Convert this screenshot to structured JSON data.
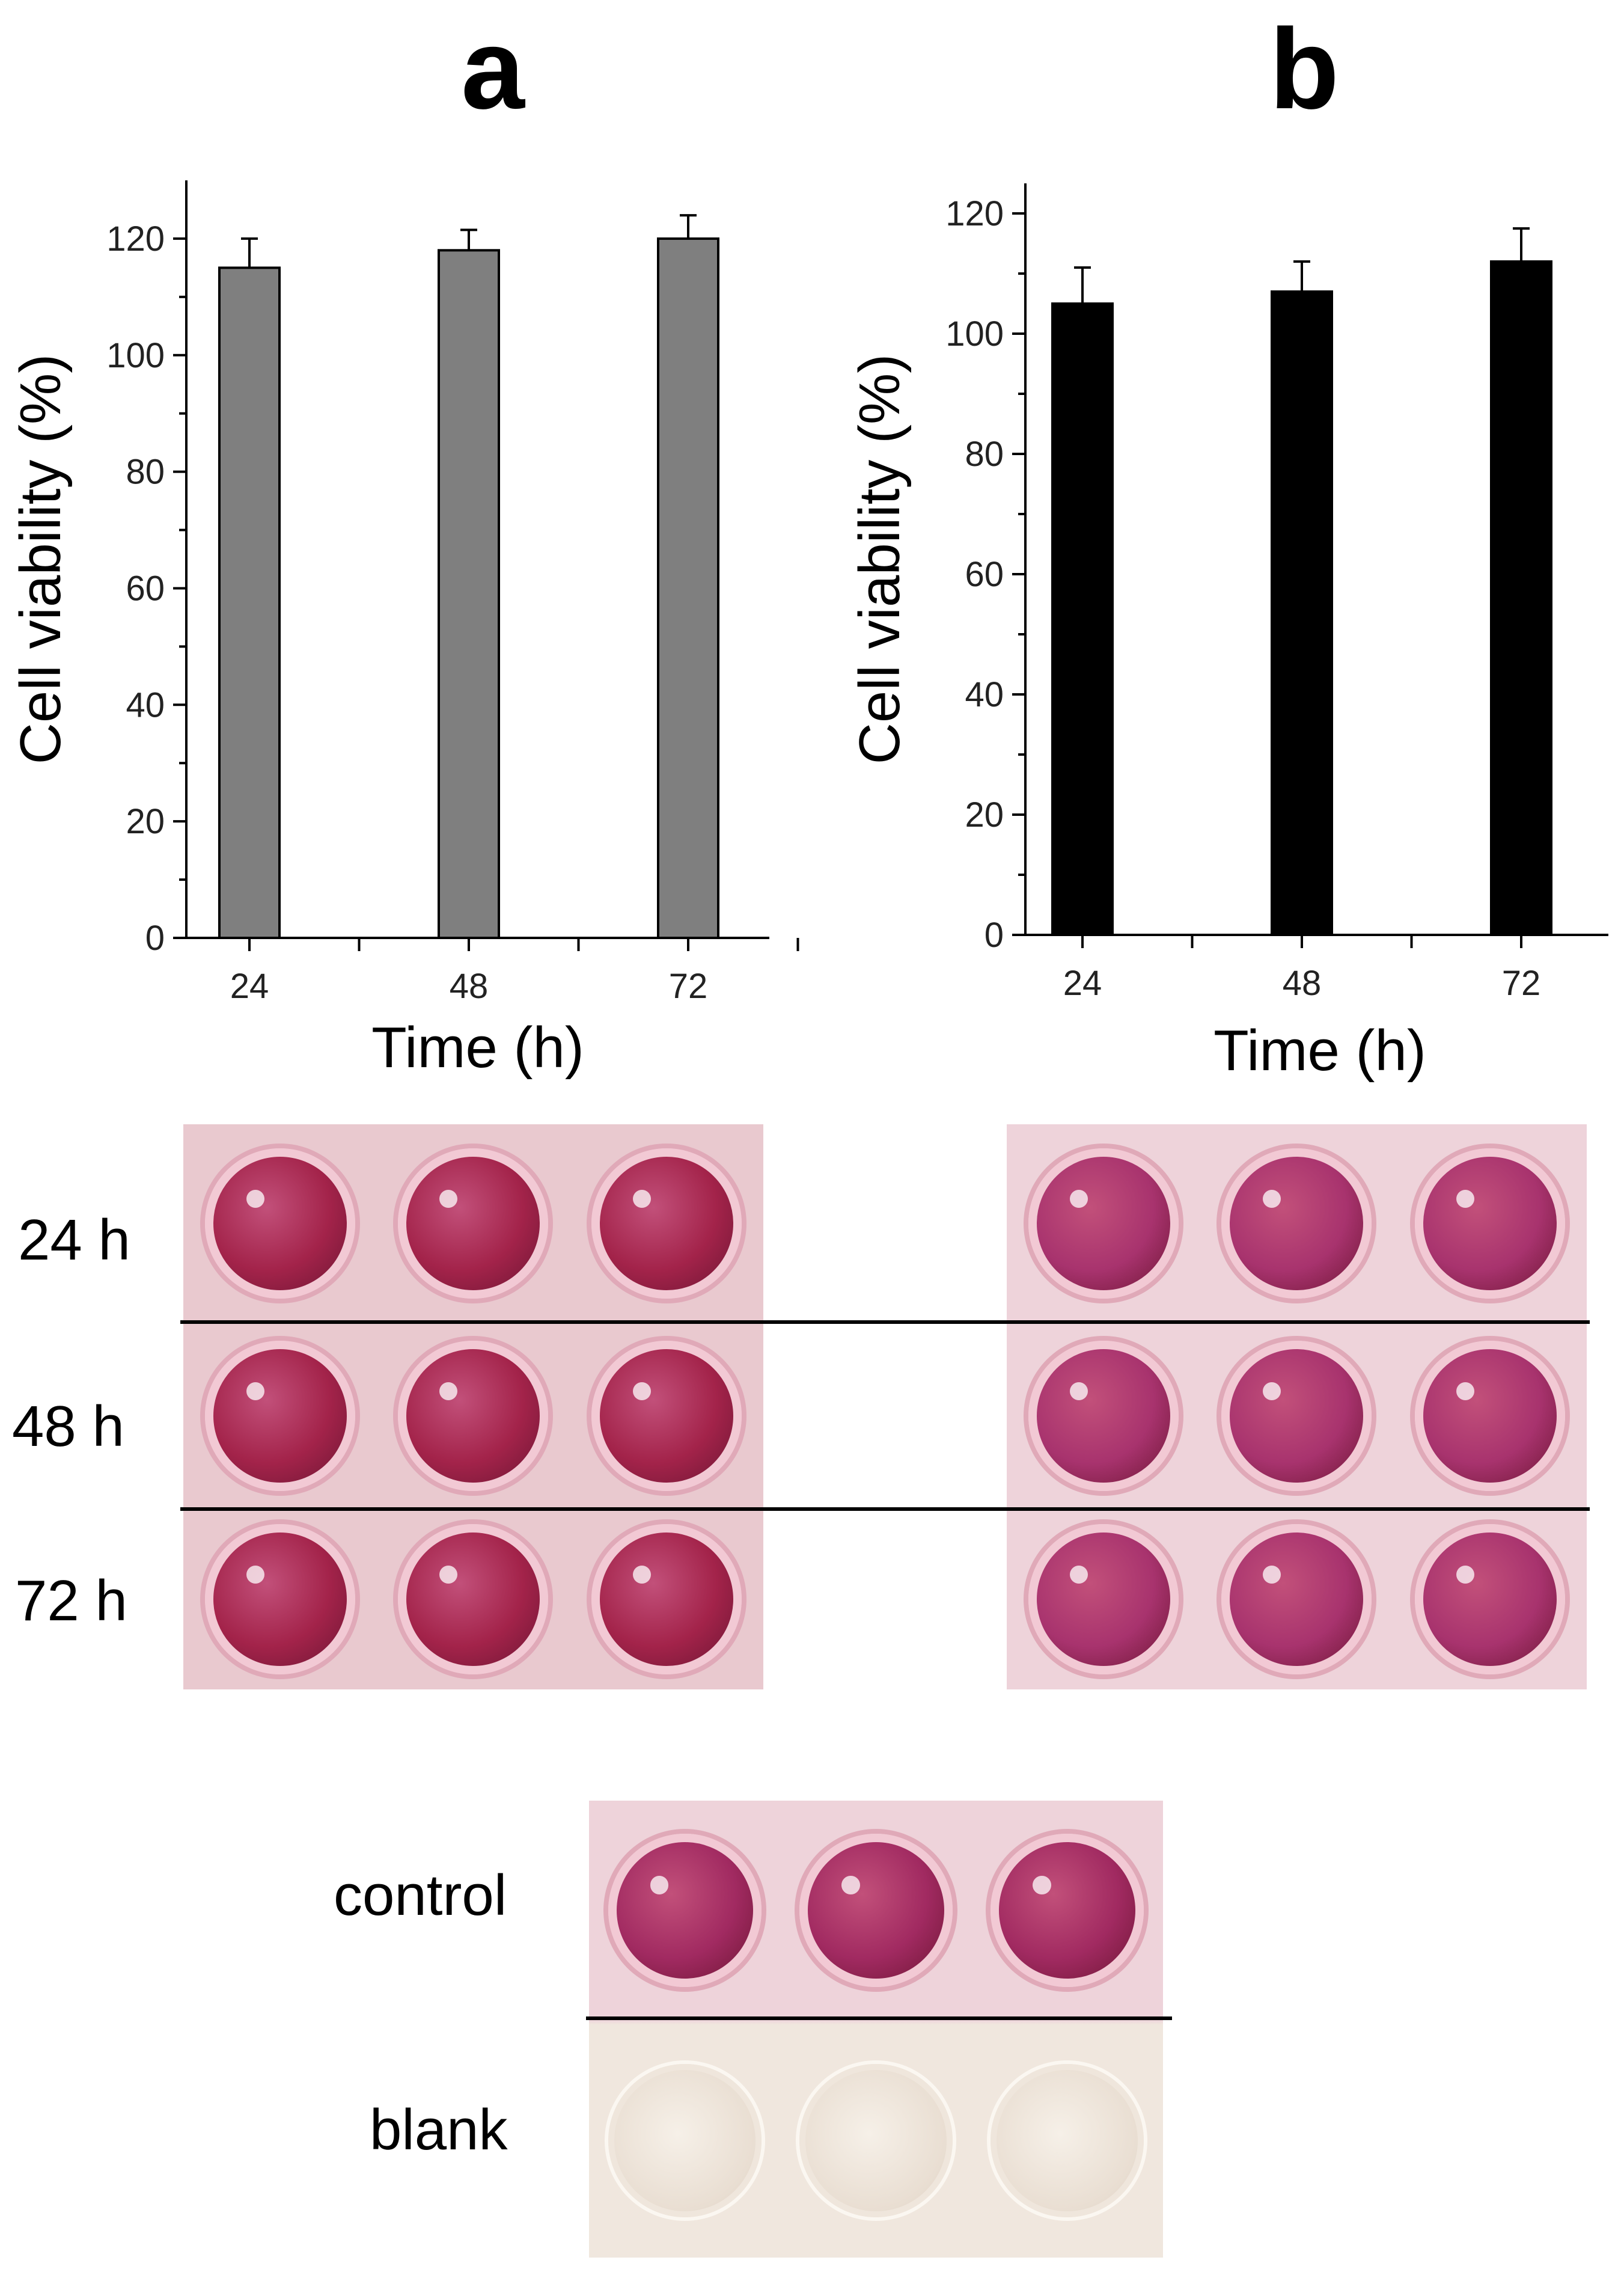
{
  "panels": {
    "a": {
      "letter": "a"
    },
    "b": {
      "letter": "b"
    }
  },
  "chart_data": [
    {
      "type": "bar",
      "panel": "a",
      "categories": [
        "24",
        "48",
        "72"
      ],
      "values": [
        115,
        118,
        120
      ],
      "errors": [
        5,
        3.5,
        4
      ],
      "bar_color": "#7f7f7f",
      "xlabel": "Time (h)",
      "ylabel": "Cell viability (%)",
      "ylim": [
        0,
        130
      ],
      "yticks": [
        "0",
        "20",
        "40",
        "60",
        "80",
        "100",
        "120"
      ],
      "grid": false
    },
    {
      "type": "bar",
      "panel": "b",
      "categories": [
        "24",
        "48",
        "72"
      ],
      "values": [
        105,
        107,
        112
      ],
      "errors": [
        6,
        5,
        5.5
      ],
      "bar_color": "#000000",
      "xlabel": "Time (h)",
      "ylabel": "Cell viability (%)",
      "ylim": [
        0,
        125
      ],
      "yticks": [
        "0",
        "20",
        "40",
        "60",
        "80",
        "100",
        "120"
      ],
      "grid": false
    }
  ],
  "plates": {
    "row_labels": [
      "24 h",
      "48 h",
      "72 h"
    ],
    "control_label": "control",
    "blank_label": "blank",
    "colors": {
      "plate_a_bg": "#e9c9cf",
      "plate_a_well": "#a3234a",
      "plate_b_bg": "#eed3da",
      "plate_b_well": "#a8336e",
      "control_well": "#a12a61",
      "blank_bg": "#f0e7de",
      "blank_well": "#e9ded2"
    }
  }
}
